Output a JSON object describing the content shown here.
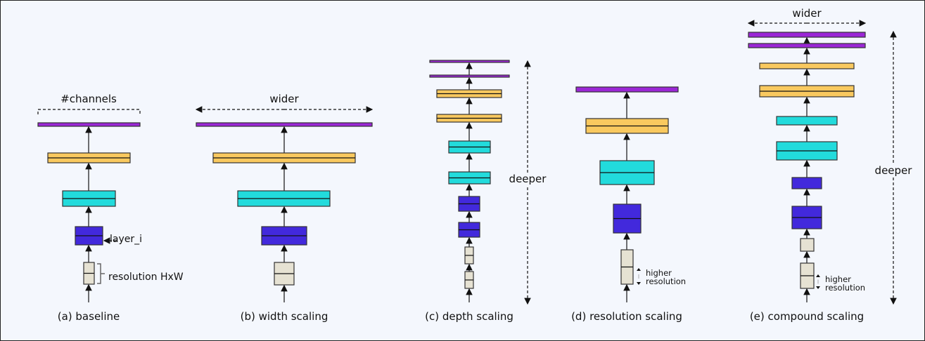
{
  "colors": {
    "background": "#f4f7fd",
    "top_layer": "#9b27d6",
    "layer_4": "#f9c95f",
    "layer_3": "#22dbdc",
    "layer_2": "#4229dc",
    "input": "#e6e2d3",
    "outline": "#333333"
  },
  "panels": [
    {
      "caption": "(a) baseline",
      "top_label": "#channels",
      "annotations": {
        "layer": "layer_i",
        "resolution": "resolution HxW"
      }
    },
    {
      "caption": "(b) width scaling",
      "top_label": "wider"
    },
    {
      "caption": "(c) depth scaling",
      "side_label": "deeper"
    },
    {
      "caption": "(d) resolution scaling",
      "resolution_label_1": "higher",
      "resolution_label_2": "resolution"
    },
    {
      "caption": "(e) compound scaling",
      "top_label": "wider",
      "side_label": "deeper",
      "resolution_label_1": "higher",
      "resolution_label_2": "resolution"
    }
  ]
}
